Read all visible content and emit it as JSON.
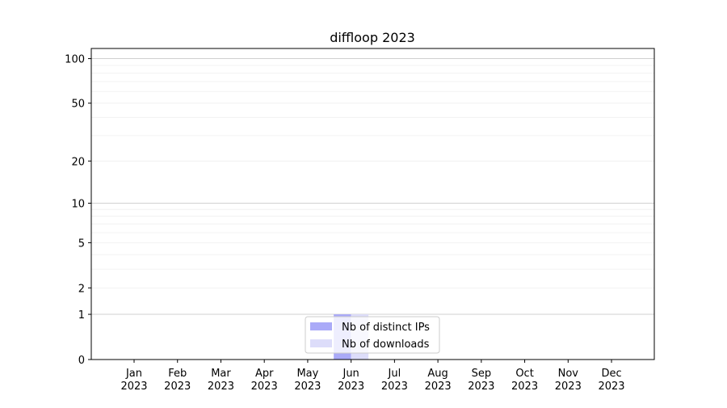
{
  "chart_data": {
    "type": "bar",
    "title": "diffloop 2023",
    "xlabel": "",
    "ylabel": "",
    "categories": [
      "Jan\n2023",
      "Feb\n2023",
      "Mar\n2023",
      "Apr\n2023",
      "May\n2023",
      "Jun\n2023",
      "Jul\n2023",
      "Aug\n2023",
      "Sep\n2023",
      "Oct\n2023",
      "Nov\n2023",
      "Dec\n2023"
    ],
    "category_lines": [
      [
        "Jan",
        "2023"
      ],
      [
        "Feb",
        "2023"
      ],
      [
        "Mar",
        "2023"
      ],
      [
        "Apr",
        "2023"
      ],
      [
        "May",
        "2023"
      ],
      [
        "Jun",
        "2023"
      ],
      [
        "Jul",
        "2023"
      ],
      [
        "Aug",
        "2023"
      ],
      [
        "Sep",
        "2023"
      ],
      [
        "Oct",
        "2023"
      ],
      [
        "Nov",
        "2023"
      ],
      [
        "Dec",
        "2023"
      ]
    ],
    "series": [
      {
        "name": "Nb of distinct IPs",
        "color": "#aaaaf8",
        "values": [
          0,
          0,
          0,
          0,
          0,
          1,
          0,
          0,
          0,
          0,
          0,
          0
        ]
      },
      {
        "name": "Nb of downloads",
        "color": "#ddddfa",
        "values": [
          0,
          0,
          0,
          0,
          0,
          1,
          0,
          0,
          0,
          0,
          0,
          0
        ]
      }
    ],
    "y_scale": "log10(1+y)",
    "yticks": [
      0,
      1,
      2,
      5,
      10,
      20,
      50,
      100
    ],
    "ytick_labels": [
      "0",
      "1",
      "2",
      "5",
      "10",
      "20",
      "50",
      "100"
    ],
    "ylim": [
      0,
      117
    ],
    "grid": true,
    "legend_position": "bottom-center"
  }
}
